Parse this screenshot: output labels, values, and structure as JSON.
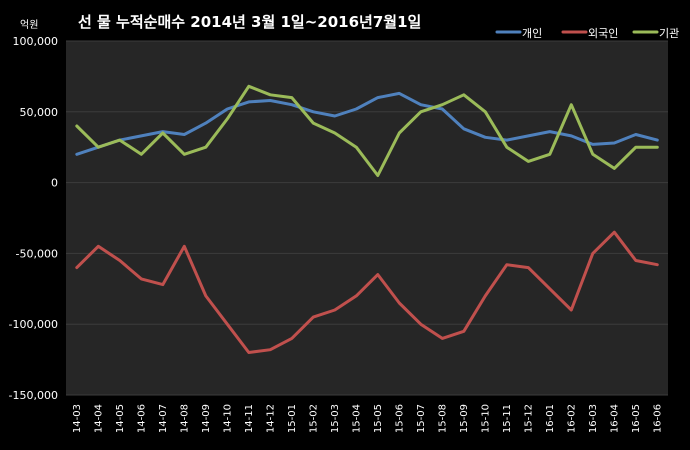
{
  "chart_data": {
    "type": "line",
    "title": "선 물 누적순매수 2014년 3월 1일~2016년7월1일",
    "unit_label": "억원",
    "ylim": [
      -150000,
      100000
    ],
    "y_ticks": [
      100000,
      50000,
      0,
      -50000,
      -100000,
      -150000
    ],
    "y_tick_labels": [
      "100,000",
      "50,000",
      "0",
      "-50,000",
      "-100,000",
      "-150,000"
    ],
    "categories": [
      "14-03",
      "14-04",
      "14-05",
      "14-06",
      "14-07",
      "14-08",
      "14-09",
      "14-10",
      "14-11",
      "14-12",
      "15-01",
      "15-02",
      "15-03",
      "15-04",
      "15-05",
      "15-06",
      "15-07",
      "15-08",
      "15-09",
      "15-10",
      "15-11",
      "15-12",
      "16-01",
      "16-02",
      "16-03",
      "16-04",
      "16-05",
      "16-06"
    ],
    "grid": true,
    "legend_position": "top-right",
    "series": [
      {
        "name": "개인",
        "color": "#4f81bd",
        "values": [
          20000,
          25000,
          30000,
          33000,
          36000,
          34000,
          42000,
          52000,
          57000,
          58000,
          55000,
          50000,
          47000,
          52000,
          60000,
          63000,
          55000,
          52000,
          38000,
          32000,
          30000,
          33000,
          36000,
          33000,
          27000,
          28000,
          34000,
          30000
        ]
      },
      {
        "name": "외국인",
        "color": "#c0504d",
        "values": [
          -60000,
          -45000,
          -55000,
          -68000,
          -72000,
          -45000,
          -80000,
          -100000,
          -120000,
          -118000,
          -110000,
          -95000,
          -90000,
          -80000,
          -65000,
          -85000,
          -100000,
          -110000,
          -105000,
          -80000,
          -58000,
          -60000,
          -75000,
          -90000,
          -50000,
          -35000,
          -55000,
          -58000
        ]
      },
      {
        "name": "기관",
        "color": "#9bbb59",
        "values": [
          40000,
          25000,
          30000,
          20000,
          35000,
          20000,
          25000,
          45000,
          68000,
          62000,
          60000,
          42000,
          35000,
          25000,
          5000,
          35000,
          50000,
          55000,
          62000,
          50000,
          25000,
          15000,
          20000,
          55000,
          20000,
          10000,
          25000,
          25000
        ]
      }
    ]
  }
}
